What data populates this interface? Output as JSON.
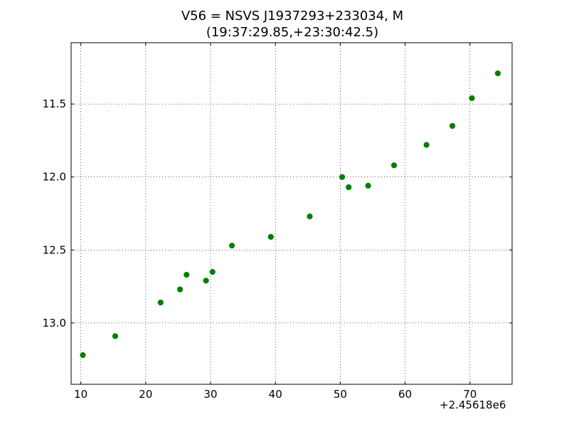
{
  "chart_data": {
    "type": "scatter",
    "title": "V56 = NSVS J1937293+233034, M",
    "subtitle": "(19:37:29.85,+23:30:42.5)",
    "xlabel": "",
    "ylabel": "",
    "x_offset_label": "+2.45618e6",
    "xlim": [
      8.5,
      76.5
    ],
    "ylim": [
      13.42,
      11.08
    ],
    "y_inverted": true,
    "x_ticks": [
      10,
      20,
      30,
      40,
      50,
      60,
      70
    ],
    "x_tick_labels": [
      "10",
      "20",
      "30",
      "40",
      "50",
      "60",
      "70"
    ],
    "y_ticks": [
      11.5,
      12.0,
      12.5,
      13.0
    ],
    "y_tick_labels": [
      "11.5",
      "12.0",
      "12.5",
      "13.0"
    ],
    "grid": true,
    "marker_color": "#007f00",
    "series": [
      {
        "x": [
          10.3,
          15.3,
          22.3,
          25.3,
          26.3,
          29.3,
          30.3,
          33.3,
          39.3,
          45.3,
          50.3,
          51.3,
          54.3,
          58.3,
          63.3,
          67.3,
          70.3,
          74.3
        ],
        "y": [
          13.22,
          13.09,
          12.86,
          12.77,
          12.67,
          12.71,
          12.65,
          12.47,
          12.41,
          12.27,
          12.0,
          12.07,
          12.06,
          11.92,
          11.78,
          11.65,
          11.46,
          11.29
        ]
      }
    ]
  }
}
